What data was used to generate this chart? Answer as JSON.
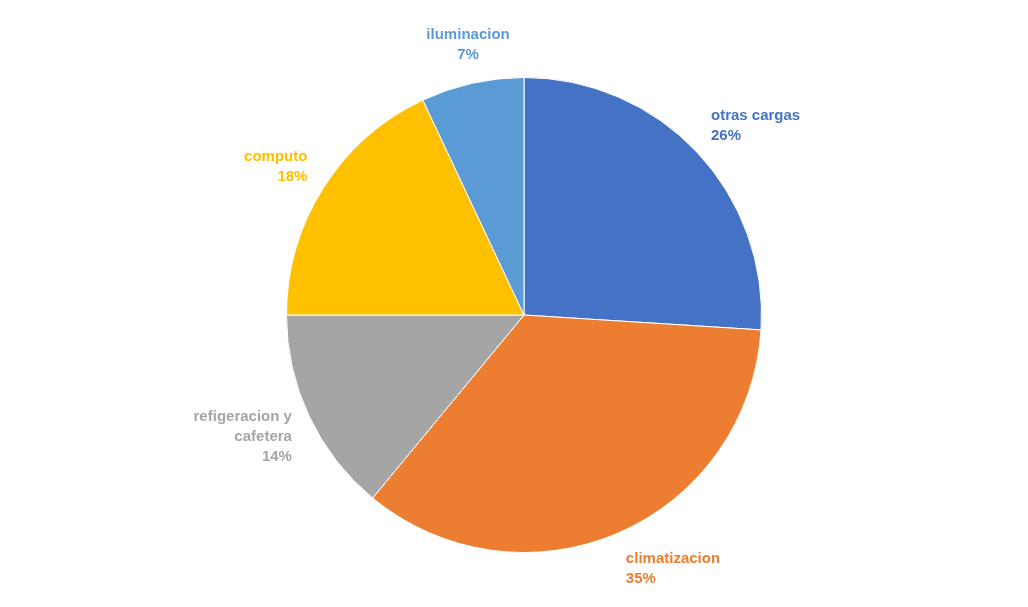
{
  "chart_data": {
    "type": "pie",
    "categories": [
      "otras cargas",
      "climatizacion",
      "refigeracion y cafetera",
      "computo",
      "iluminacion"
    ],
    "values": [
      26,
      35,
      14,
      18,
      7
    ],
    "colors": [
      "#4472c4",
      "#ed7d31",
      "#a5a5a5",
      "#ffc000",
      "#5b9bd5"
    ],
    "value_labels": [
      "26%",
      "35%",
      "14%",
      "18%",
      "7%"
    ],
    "legend": false
  }
}
